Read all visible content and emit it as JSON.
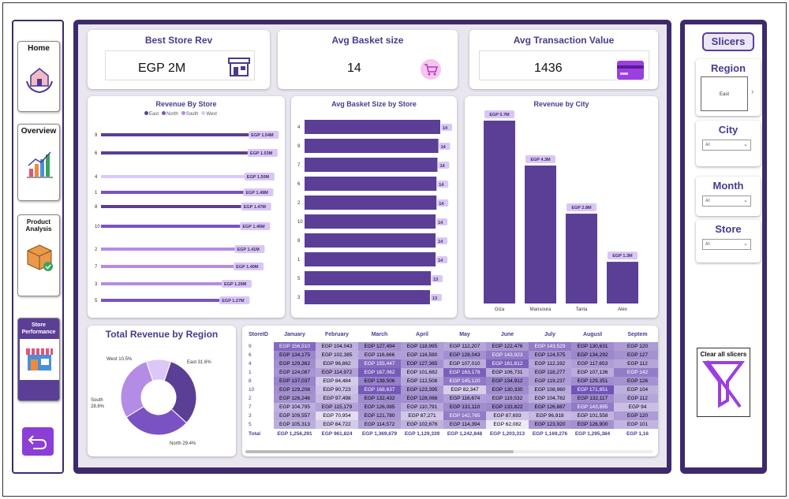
{
  "nav": {
    "home_label": "Home",
    "overview_label": "Overview",
    "product_label": "Product Analysis",
    "store_label": "Store Performance"
  },
  "kpis": {
    "best_store_title": "Best Store Rev",
    "best_store_value": "EGP 2M",
    "basket_title": "Avg Basket size",
    "basket_value": "14",
    "transaction_title": "Avg Transaction Value",
    "transaction_value": "1436"
  },
  "slicers": {
    "title": "Slicers",
    "region_title": "Region",
    "region_value": "East",
    "city_title": "City",
    "city_value": "All",
    "month_title": "Month",
    "month_value": "All",
    "store_title": "Store",
    "store_value": "All",
    "clear_label": "Clear all slicers"
  },
  "colors": {
    "primary": "#5b3f96",
    "frame": "#3d2a6b",
    "bg": "#e9e6ef",
    "east": "#5b3f96",
    "north": "#7b52c2",
    "south": "#b48ce6",
    "west": "#dcc8f6"
  },
  "chart_data": [
    {
      "type": "bar",
      "orientation": "horizontal",
      "title": "Revenue By Store",
      "legend": [
        "East",
        "North",
        "South",
        "West"
      ],
      "legend_position": "top",
      "categories": [
        "9",
        "6",
        "4",
        "1",
        "8",
        "10",
        "2",
        "7",
        "3",
        "5"
      ],
      "values": [
        1.54,
        1.53,
        1.5,
        1.49,
        1.47,
        1.46,
        1.41,
        1.4,
        1.29,
        1.27
      ],
      "labels": [
        "EGP 1.54M",
        "EGP 1.53M",
        "EGP 1.50M",
        "EGP 1.49M",
        "EGP 1.47M",
        "EGP 1.46M",
        "EGP 1.41M",
        "EGP 1.40M",
        "EGP 1.29M",
        "EGP 1.27M"
      ],
      "regions": [
        "East",
        "East",
        "West",
        "North",
        "East",
        "North",
        "South",
        "South",
        "South",
        "North"
      ]
    },
    {
      "type": "bar",
      "orientation": "horizontal",
      "title": "Avg Basket Size by Store",
      "categories": [
        "4",
        "9",
        "7",
        "6",
        "2",
        "10",
        "8",
        "1",
        "5",
        "3"
      ],
      "values": [
        14,
        14,
        14,
        14,
        14,
        14,
        14,
        14,
        13,
        13
      ],
      "widths": [
        14.5,
        14.3,
        14.2,
        14.1,
        14.1,
        14.0,
        14.0,
        14.0,
        13.5,
        13.4
      ],
      "labels": [
        "14",
        "14",
        "14",
        "14",
        "14",
        "14",
        "14",
        "14",
        "13",
        "13"
      ]
    },
    {
      "type": "bar",
      "orientation": "vertical",
      "title": "Revenue by City",
      "categories": [
        "Giza",
        "Mansoura",
        "Tanta",
        "Alex"
      ],
      "values": [
        5.7,
        4.3,
        2.8,
        1.3
      ],
      "labels": [
        "EGP 5.7M",
        "EGP 4.3M",
        "EGP 2.8M",
        "EGP 1.3M"
      ]
    },
    {
      "type": "pie",
      "donut": true,
      "title": "Total Revenue by Region",
      "categories": [
        "East",
        "North",
        "South",
        "West"
      ],
      "values": [
        31.6,
        29.4,
        28.6,
        10.5
      ],
      "labels": [
        "East 31.6%",
        "North 29.4%",
        "South\n28.6%",
        "West 10.5%"
      ]
    },
    {
      "type": "table",
      "columns": [
        "StoreID",
        "January",
        "February",
        "March",
        "April",
        "May",
        "June",
        "July",
        "August",
        "Septem"
      ],
      "rows": [
        [
          "9",
          "EGP 156,510",
          "EGP 104,043",
          "EGP 127,494",
          "EGP 118,995",
          "EGP 112,207",
          "EGP 122,476",
          "EGP 143,529",
          "EGP 130,631",
          "EGP 120"
        ],
        [
          "6",
          "EGP 134,175",
          "EGP 102,385",
          "EGP 116,666",
          "EGP 116,590",
          "EGP 128,043",
          "EGP 143,923",
          "EGP 124,575",
          "EGP 134,292",
          "EGP 127"
        ],
        [
          "4",
          "EGP 129,362",
          "EGP 96,862",
          "EGP 155,447",
          "EGP 127,365",
          "EGP 107,010",
          "EGP 161,812",
          "EGP 112,192",
          "EGP 117,653",
          "EGP 112"
        ],
        [
          "1",
          "EGP 124,087",
          "EGP 114,972",
          "EGP 167,062",
          "EGP 101,682",
          "EGP 163,178",
          "EGP 106,731",
          "EGP 118,277",
          "EGP 107,136",
          "EGP 142"
        ],
        [
          "8",
          "EGP 137,037",
          "EGP 84,484",
          "EGP 139,506",
          "EGP 112,508",
          "EGP 145,120",
          "EGP 134,912",
          "EGP 119,237",
          "EGP 129,351",
          "EGP 126"
        ],
        [
          "10",
          "EGP 129,208",
          "EGP 90,723",
          "EGP 168,637",
          "EGP 123,395",
          "EGP 82,347",
          "EGP 130,330",
          "EGP 108,960",
          "EGP 171,851",
          "EGP 104"
        ],
        [
          "2",
          "EGP 126,246",
          "EGP 97,498",
          "EGP 132,432",
          "EGP 128,066",
          "EGP 116,674",
          "EGP 119,532",
          "EGP 104,782",
          "EGP 132,117",
          "EGP 112"
        ],
        [
          "7",
          "EGP 104,795",
          "EGP 115,179",
          "EGP 126,085",
          "EGP 110,791",
          "EGP 131,110",
          "EGP 133,822",
          "EGP 126,887",
          "EGP 143,895",
          "EGP 94"
        ],
        [
          "3",
          "EGP 109,557",
          "EGP 70,954",
          "EGP 121,780",
          "EGP 87,271",
          "EGP 142,765",
          "EGP 87,693",
          "EGP 96,918",
          "EGP 101,558",
          "EGP 120"
        ],
        [
          "5",
          "EGP 105,313",
          "EGP 84,722",
          "EGP 114,572",
          "EGP 102,676",
          "EGP 114,394",
          "EGP 62,082",
          "EGP 123,920",
          "EGP 126,900",
          "EGP 101"
        ]
      ],
      "total": [
        "Total",
        "EGP 1,256,291",
        "EGP 961,824",
        "EGP 1,369,679",
        "EGP 1,129,339",
        "EGP 1,242,848",
        "EGP 1,203,313",
        "EGP 1,169,276",
        "EGP 1,295,384",
        "EGP 1,16"
      ]
    }
  ]
}
